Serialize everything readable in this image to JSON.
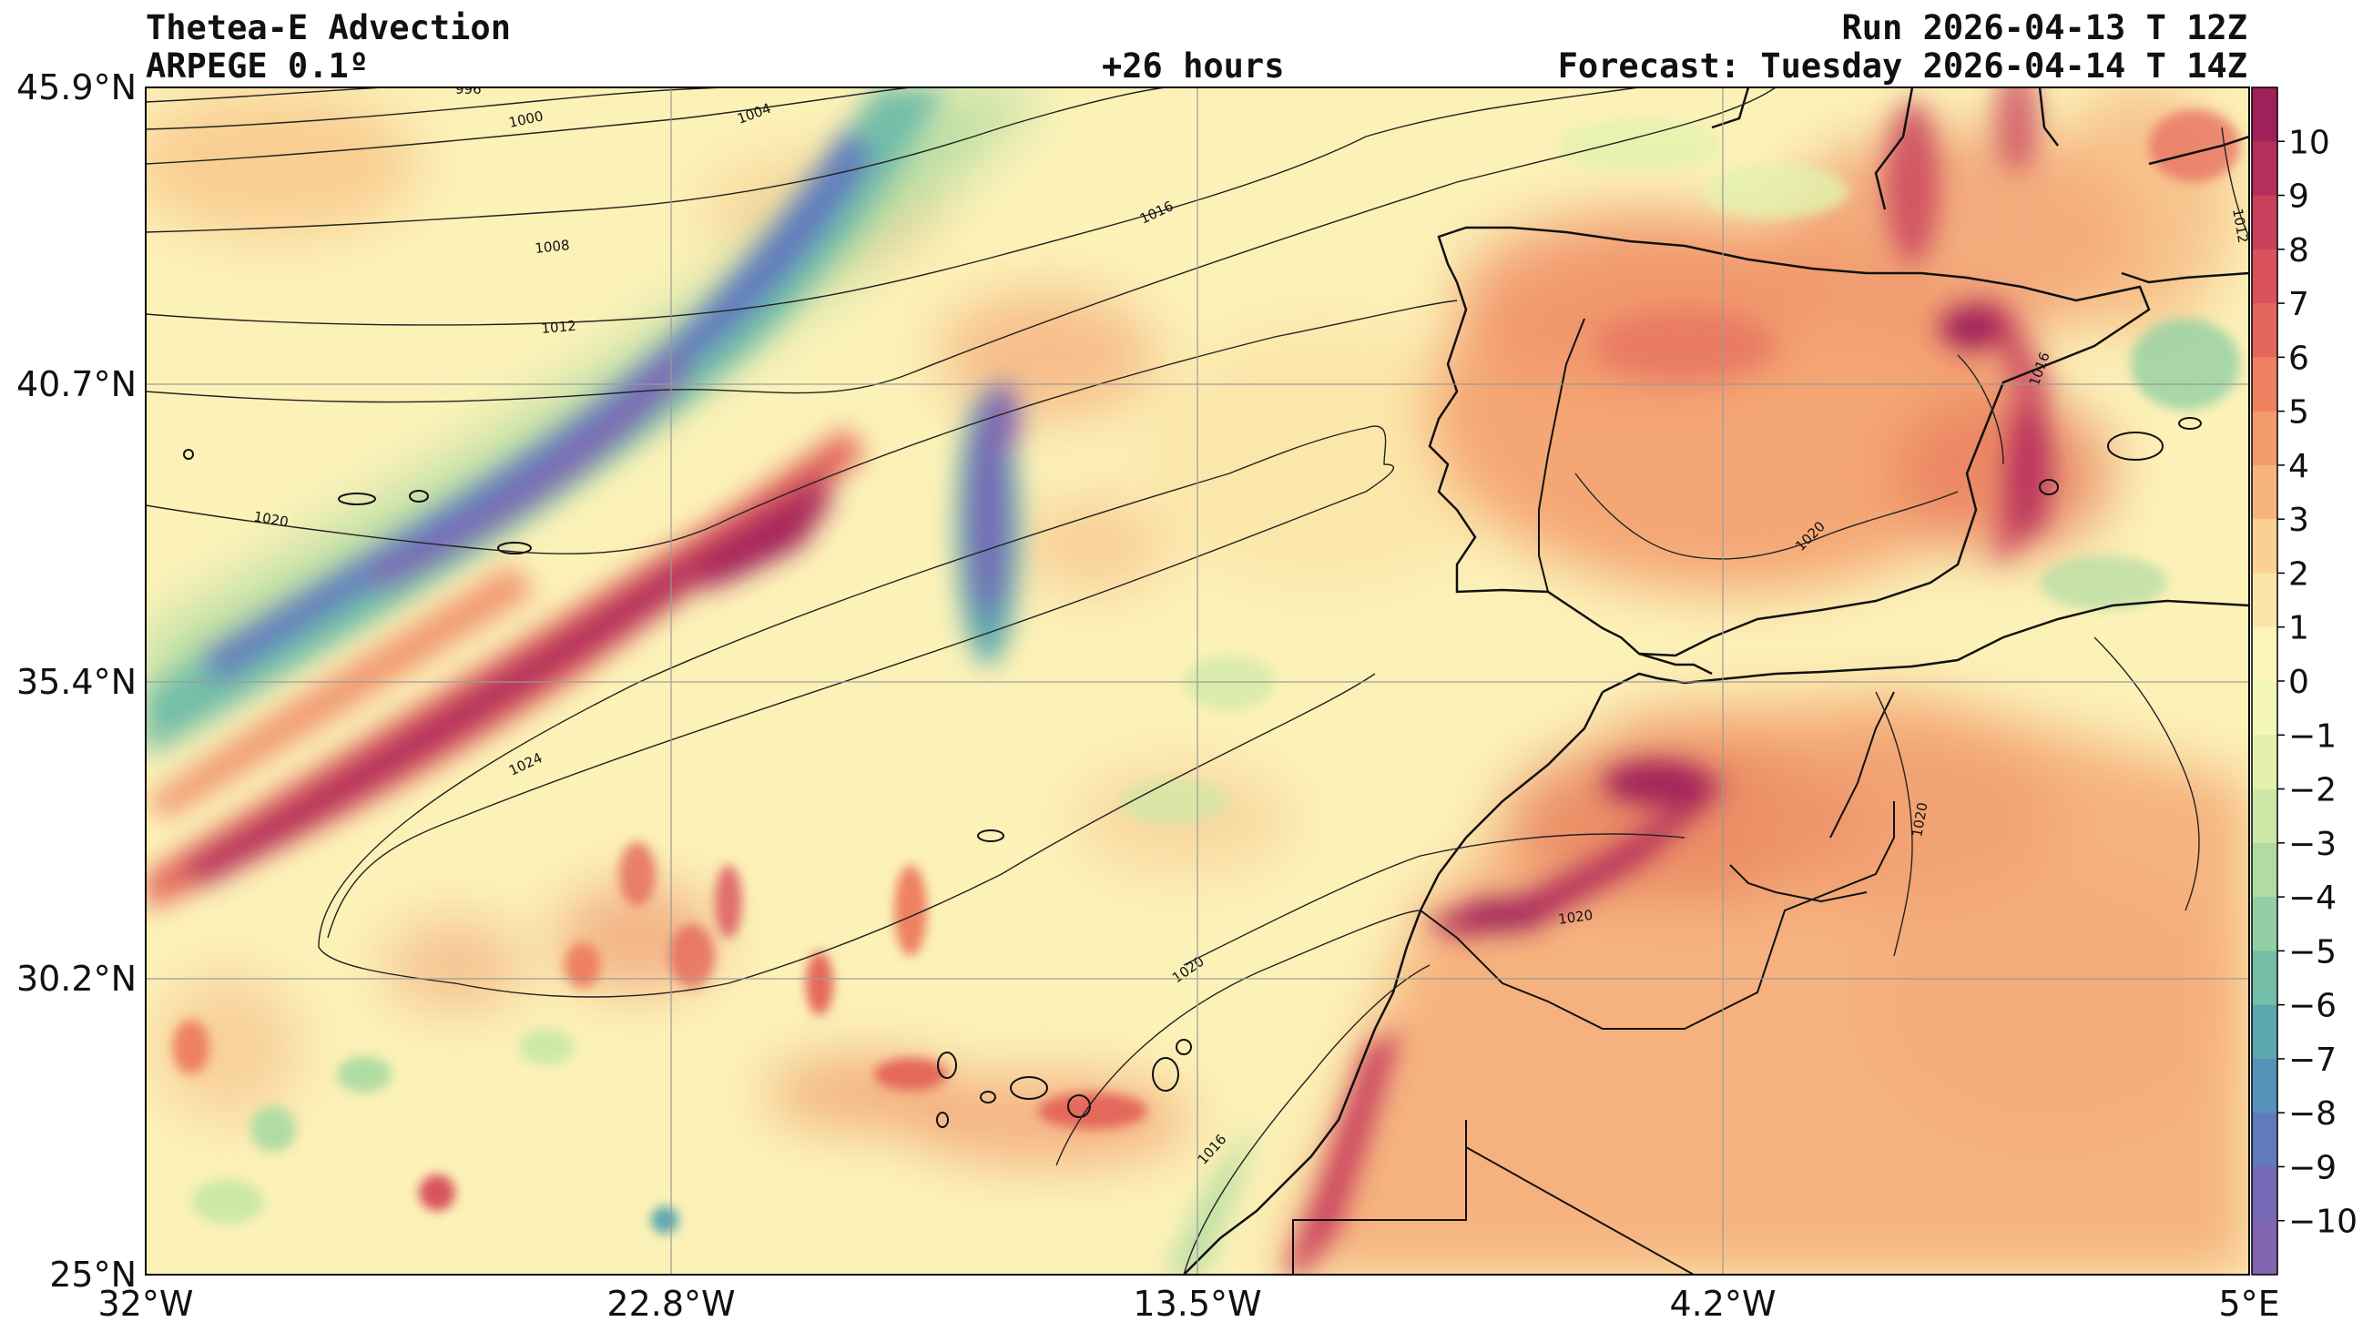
{
  "header": {
    "title": "Thetea-E Advection",
    "model": "ARPEGE 0.1º",
    "lead_time": "+26 hours",
    "run": "Run 2026-04-13 T 12Z",
    "forecast": "Forecast: Tuesday 2026-04-14 T 14Z"
  },
  "axes": {
    "lat_labels": [
      "45.9°N",
      "40.7°N",
      "35.4°N",
      "30.2°N",
      "25°N"
    ],
    "lon_labels": [
      "32°W",
      "22.8°W",
      "13.5°W",
      "4.2°W",
      "5°E"
    ]
  },
  "colorbar": {
    "labels": [
      "10",
      "9",
      "8",
      "7",
      "6",
      "5",
      "4",
      "3",
      "2",
      "1",
      "0",
      "−1",
      "−2",
      "−3",
      "−4",
      "−5",
      "−6",
      "−7",
      "−8",
      "−9",
      "−10"
    ],
    "colors": [
      "#a0215a",
      "#b52e5c",
      "#c9405d",
      "#d9525c",
      "#e5675b",
      "#ee8160",
      "#f39b6b",
      "#f7b57d",
      "#fad093",
      "#fbe5a8",
      "#fdf6bb",
      "#f3f6b6",
      "#e4f1ad",
      "#cde8a6",
      "#b0dca2",
      "#92cfa4",
      "#75bea8",
      "#5ca8af",
      "#5591b8",
      "#607abd",
      "#7669b5",
      "#8266b0"
    ]
  },
  "isobars": [
    {
      "label": "996"
    },
    {
      "label": "1000"
    },
    {
      "label": "1004"
    },
    {
      "label": "1008"
    },
    {
      "label": "1012"
    },
    {
      "label": "1016"
    },
    {
      "label": "1020"
    },
    {
      "label": "1024"
    },
    {
      "label": "1020"
    },
    {
      "label": "1016"
    },
    {
      "label": "1020"
    },
    {
      "label": "1020"
    },
    {
      "label": "1020"
    },
    {
      "label": "1016"
    },
    {
      "label": "1012"
    }
  ]
}
